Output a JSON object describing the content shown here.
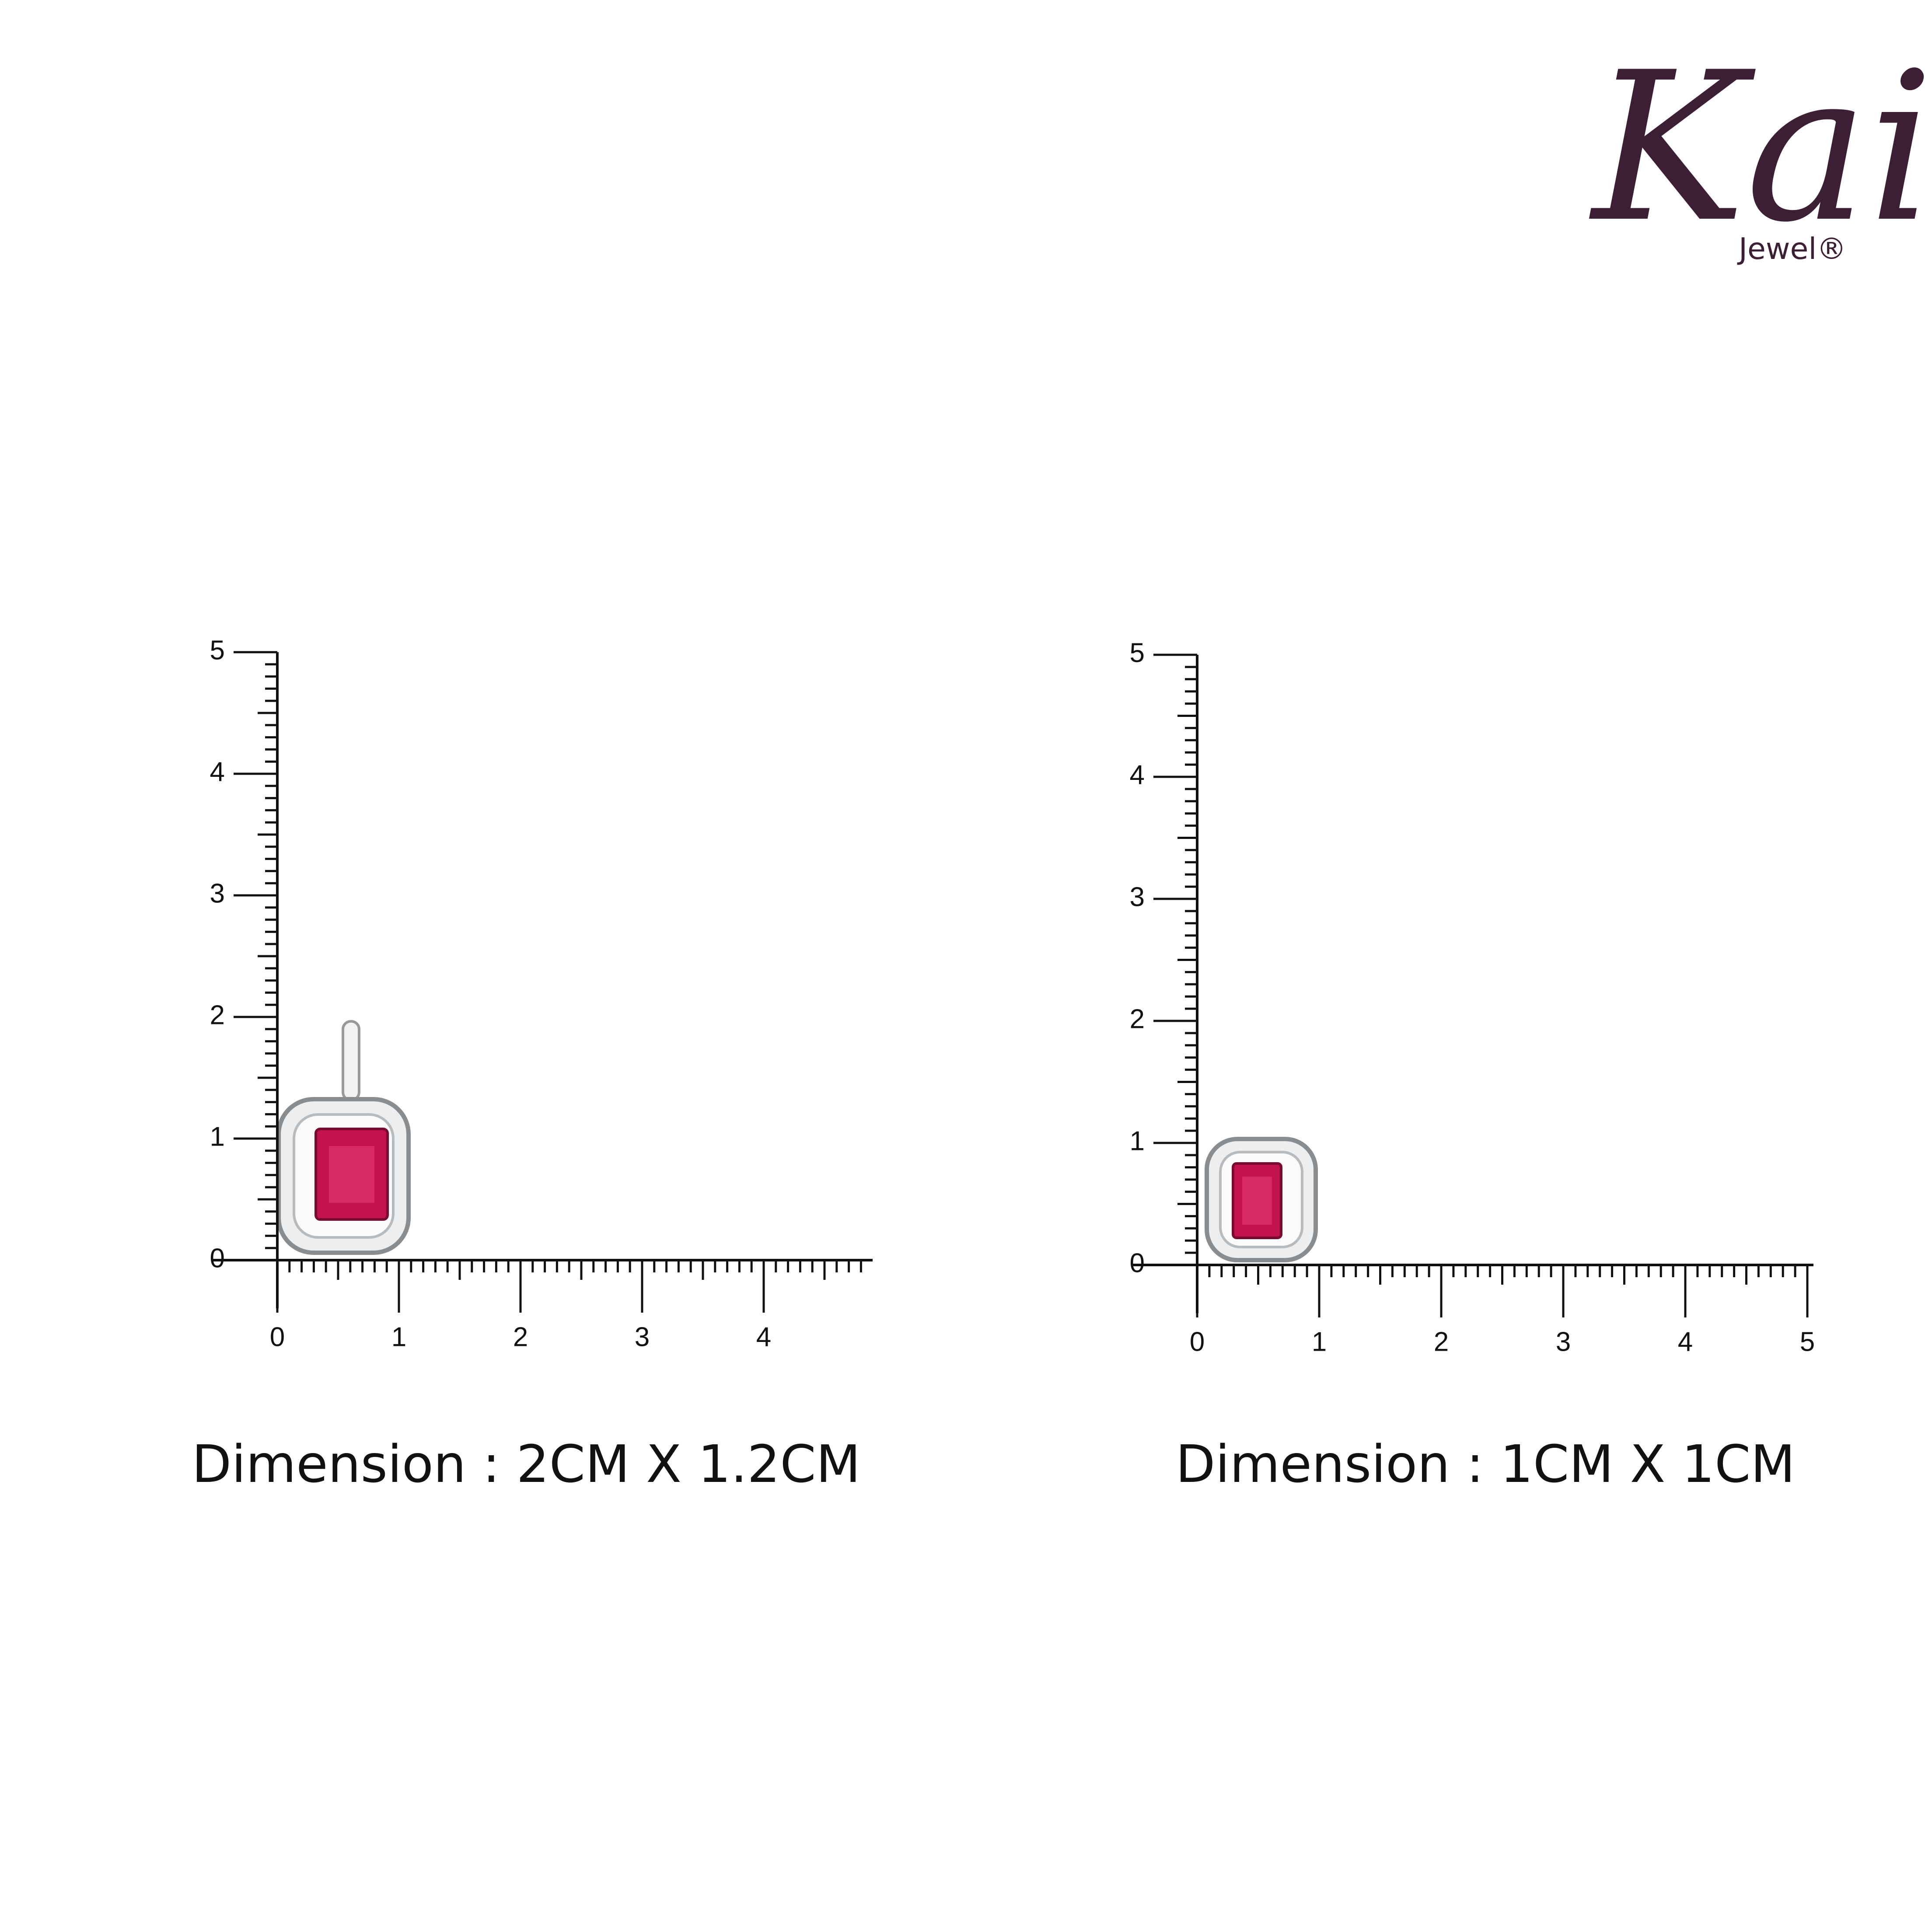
{
  "logo": {
    "name": "Kai",
    "sub": "Jewel®"
  },
  "panels": [
    {
      "y_ticks": [
        0,
        1,
        2,
        3,
        4,
        5
      ],
      "x_ticks": [
        0,
        1,
        2,
        3,
        4
      ],
      "caption": "Dimension : 2CM X 1.2CM"
    },
    {
      "y_ticks": [
        0,
        1,
        2,
        3,
        4,
        5
      ],
      "x_ticks": [
        0,
        1,
        2,
        3,
        4,
        5
      ],
      "caption": "Dimension : 1CM X 1CM"
    }
  ]
}
